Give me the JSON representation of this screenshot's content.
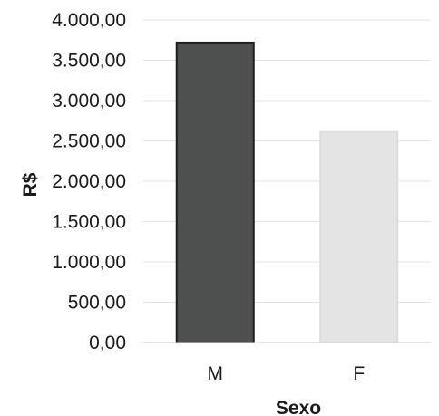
{
  "chart_data": {
    "type": "bar",
    "categories": [
      "M",
      "F"
    ],
    "values": [
      3720,
      2620
    ],
    "xlabel": "Sexo",
    "ylabel": "R$",
    "ylim": [
      0,
      4000
    ],
    "yticks": [
      0,
      500,
      1000,
      1500,
      2000,
      2500,
      3000,
      3500,
      4000
    ],
    "ytick_labels": [
      "0,00",
      "500,00",
      "1.000,00",
      "1.500,00",
      "2.000,00",
      "2.500,00",
      "3.000,00",
      "3.500,00",
      "4.000,00"
    ],
    "grid": true,
    "legend": "none",
    "bar_colors": [
      "#4d504e",
      "#e4e4e4"
    ],
    "bar_edge_colors": [
      "#1e1e1e",
      "#dcdcdc"
    ]
  }
}
